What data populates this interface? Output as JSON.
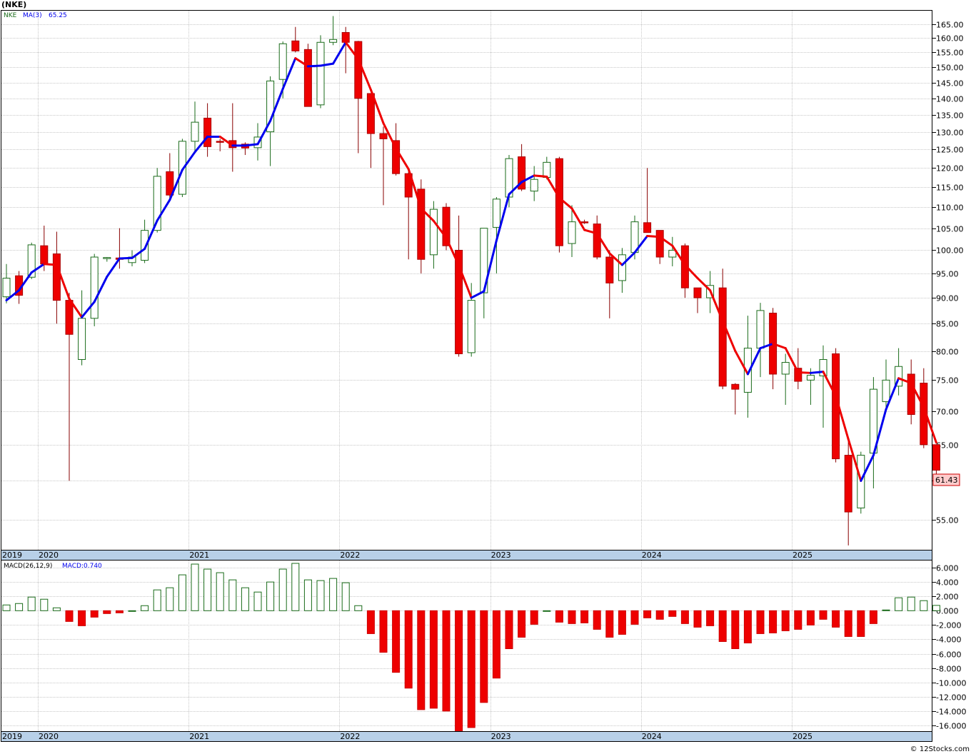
{
  "title": "(NKE)",
  "footer": "© 12Stocks.com",
  "colors": {
    "up_candle": "#1a6b1a",
    "down_candle": "#ee0000",
    "ma_up": "#0000ee",
    "ma_down": "#ee0000",
    "grid": "#c8c8c8",
    "axis_band": "#b8d0e8",
    "last_label_bg": "#ffcccc"
  },
  "chart_data": [
    {
      "type": "candlestick",
      "interval": "monthly",
      "legend": {
        "symbol": "NKE",
        "ma_label": "MA(3)",
        "ma_value": "65.25"
      },
      "last_price_label": "61.43",
      "y_scale": "log",
      "ylim": [
        51.5,
        170
      ],
      "yticks": [
        55,
        60,
        65,
        70,
        75,
        80,
        85,
        90,
        95,
        100,
        105,
        110,
        115,
        120,
        125,
        130,
        135,
        140,
        145,
        150,
        155,
        160,
        165
      ],
      "ytick_labels": [
        "55.00",
        "60.00",
        "65.00",
        "70.00",
        "75.00",
        "80.00",
        "85.00",
        "90.00",
        "95.00",
        "100.00",
        "105.00",
        "110.00",
        "115.00",
        "120.00",
        "125.00",
        "130.00",
        "135.00",
        "140.00",
        "145.00",
        "150.00",
        "155.00",
        "160.00",
        "165.00"
      ],
      "xaxis_years": [
        {
          "label": "2019",
          "index": -0.5
        },
        {
          "label": "2020",
          "index": 3
        },
        {
          "label": "2021",
          "index": 15
        },
        {
          "label": "2022",
          "index": 27
        },
        {
          "label": "2023",
          "index": 39
        },
        {
          "label": "2024",
          "index": 51
        },
        {
          "label": "2025",
          "index": 63
        }
      ],
      "series": [
        {
          "name": "NKE",
          "ohlc": [
            [
              90.2,
              97.0,
              88.9,
              94.0
            ],
            [
              94.5,
              95.5,
              88.8,
              90.5
            ],
            [
              94.2,
              101.7,
              93.8,
              101.2
            ],
            [
              101.0,
              105.6,
              95.5,
              97.0
            ],
            [
              99.2,
              104.2,
              85.0,
              89.5
            ],
            [
              89.5,
              91.0,
              60.0,
              83.0
            ],
            [
              78.5,
              91.5,
              77.5,
              86.0
            ],
            [
              86.0,
              99.2,
              84.5,
              98.5
            ],
            [
              98.2,
              98.5,
              97.5,
              98.4
            ],
            [
              98.3,
              105.0,
              96.0,
              98.0
            ],
            [
              97.3,
              100.0,
              96.5,
              98.5
            ],
            [
              97.8,
              107.0,
              97.2,
              104.5
            ],
            [
              104.5,
              120.0,
              104.0,
              117.8
            ],
            [
              119.0,
              124.0,
              112.0,
              113.0
            ],
            [
              113.2,
              128.0,
              112.5,
              127.3
            ],
            [
              127.3,
              139.0,
              124.5,
              132.8
            ],
            [
              134.0,
              138.5,
              123.0,
              125.8
            ],
            [
              127.3,
              128.0,
              124.5,
              127.0
            ],
            [
              127.5,
              138.5,
              119.0,
              125.5
            ],
            [
              126.5,
              127.0,
              123.5,
              125.4
            ],
            [
              125.5,
              132.5,
              122.0,
              128.5
            ],
            [
              130.0,
              147.0,
              120.5,
              145.5
            ],
            [
              146.0,
              158.8,
              140.0,
              158.0
            ],
            [
              159.0,
              164.0,
              155.0,
              155.5
            ],
            [
              156.0,
              158.0,
              137.5,
              137.5
            ],
            [
              138.0,
              161.0,
              137.0,
              158.5
            ],
            [
              158.5,
              168.0,
              157.5,
              159.5
            ],
            [
              162.0,
              164.0,
              148.0,
              158.5
            ],
            [
              158.8,
              159.0,
              124.0,
              140.0
            ],
            [
              141.5,
              141.5,
              120.0,
              129.5
            ],
            [
              129.5,
              131.5,
              110.5,
              128.0
            ],
            [
              127.5,
              132.5,
              118.0,
              118.5
            ],
            [
              118.5,
              119.5,
              98.0,
              112.5
            ],
            [
              114.5,
              117.0,
              95.0,
              98.0
            ],
            [
              99.0,
              111.5,
              96.0,
              109.5
            ],
            [
              110.0,
              111.0,
              100.0,
              101.0
            ],
            [
              100.0,
              108.0,
              79.0,
              79.5
            ],
            [
              79.7,
              93.0,
              79.0,
              89.5
            ],
            [
              91.0,
              105.0,
              86.0,
              105.0
            ],
            [
              105.2,
              112.5,
              95.0,
              112.0
            ],
            [
              112.5,
              123.5,
              110.0,
              122.5
            ],
            [
              123.0,
              126.5,
              114.0,
              114.5
            ],
            [
              114.0,
              120.5,
              111.5,
              117.0
            ],
            [
              117.5,
              123.0,
              117.0,
              121.5
            ],
            [
              122.5,
              123.0,
              99.5,
              101.0
            ],
            [
              101.5,
              110.5,
              98.5,
              106.5
            ],
            [
              106.5,
              107.0,
              106.0,
              106.3
            ],
            [
              106.0,
              108.0,
              98.0,
              98.5
            ],
            [
              98.5,
              100.0,
              86.0,
              93.0
            ],
            [
              93.5,
              100.5,
              91.0,
              99.0
            ],
            [
              99.5,
              108.0,
              98.0,
              106.5
            ],
            [
              106.3,
              120.0,
              104.0,
              104.0
            ],
            [
              104.5,
              104.5,
              97.0,
              98.5
            ],
            [
              98.5,
              103.0,
              96.5,
              100.0
            ],
            [
              101.0,
              101.5,
              90.0,
              92.0
            ],
            [
              92.0,
              92.0,
              87.0,
              90.0
            ],
            [
              90.0,
              95.5,
              87.0,
              92.5
            ],
            [
              92.0,
              96.0,
              73.5,
              74.0
            ],
            [
              74.3,
              74.5,
              69.5,
              73.5
            ],
            [
              73.0,
              86.5,
              69.0,
              80.5
            ],
            [
              80.5,
              89.0,
              75.5,
              87.5
            ],
            [
              87.0,
              88.0,
              73.5,
              76.0
            ],
            [
              76.0,
              79.5,
              71.0,
              78.0
            ],
            [
              77.0,
              80.5,
              73.5,
              74.8
            ],
            [
              75.0,
              77.0,
              71.0,
              75.8
            ],
            [
              75.7,
              81.0,
              67.5,
              78.5
            ],
            [
              79.5,
              80.5,
              62.5,
              63.0
            ],
            [
              63.5,
              66.0,
              52.0,
              56.0
            ],
            [
              56.5,
              64.0,
              55.8,
              63.5
            ],
            [
              63.8,
              75.5,
              59.0,
              73.5
            ],
            [
              71.5,
              78.5,
              70.0,
              75.0
            ],
            [
              74.0,
              80.5,
              72.5,
              77.3
            ],
            [
              76.0,
              78.5,
              68.0,
              69.5
            ],
            [
              74.5,
              77.0,
              64.5,
              65.0
            ],
            [
              65.0,
              65.0,
              60.5,
              61.43
            ]
          ]
        },
        {
          "name": "MA(3)",
          "values": [
            89.5,
            91.5,
            95.2,
            97.0,
            96.8,
            89.8,
            86.2,
            89.2,
            94.3,
            98.2,
            98.3,
            100.3,
            106.8,
            111.8,
            119.5,
            124.3,
            128.6,
            128.6,
            126.1,
            126.1,
            126.5,
            133.2,
            143.0,
            153.0,
            150.3,
            150.5,
            151.2,
            158.5,
            152.7,
            142.7,
            132.5,
            125.3,
            119.7,
            109.7,
            106.7,
            102.8,
            96.7,
            90.0,
            91.3,
            102.2,
            113.2,
            116.3,
            118.0,
            117.7,
            112.3,
            109.7,
            104.6,
            103.8,
            99.3,
            96.8,
            99.5,
            103.2,
            103.0,
            101.0,
            96.8,
            94.0,
            91.5,
            85.5,
            80.0,
            76.0,
            80.5,
            81.3,
            80.5,
            76.3,
            76.2,
            76.4,
            72.4,
            65.8,
            60.0,
            63.5,
            70.3,
            75.3,
            74.5,
            70.6,
            65.3
          ]
        }
      ]
    },
    {
      "type": "bar",
      "legend": {
        "label": "MACD(26,12,9)",
        "value_label": "MACD:0.740"
      },
      "ylim": [
        -16.8,
        7.0
      ],
      "yticks": [
        6,
        4,
        2,
        0,
        -2,
        -4,
        -6,
        -8,
        -10,
        -12,
        -14,
        -16
      ],
      "ytick_labels": [
        "6.000",
        "4.000",
        "2.000",
        "0.000",
        "-2.000",
        "-4.000",
        "-6.000",
        "-8.000",
        "-10.000",
        "-12.000",
        "-14.000",
        "-16.000"
      ],
      "series": [
        {
          "name": "MACD",
          "values": [
            0.8,
            1.0,
            1.9,
            1.6,
            0.4,
            -1.5,
            -2.1,
            -0.9,
            -0.4,
            -0.3,
            0.0,
            0.7,
            2.9,
            3.2,
            5.0,
            6.5,
            5.8,
            5.3,
            4.3,
            3.2,
            2.6,
            4.0,
            5.8,
            6.6,
            4.3,
            4.2,
            4.5,
            3.9,
            0.7,
            -3.2,
            -5.8,
            -8.6,
            -10.8,
            -13.8,
            -13.6,
            -14.0,
            -16.8,
            -16.3,
            -12.8,
            -9.4,
            -5.3,
            -3.7,
            -1.9,
            0.0,
            -1.6,
            -1.8,
            -1.7,
            -2.6,
            -3.7,
            -3.3,
            -1.9,
            -1.0,
            -1.2,
            -0.8,
            -1.8,
            -2.3,
            -2.1,
            -4.3,
            -5.3,
            -4.5,
            -3.2,
            -3.1,
            -2.8,
            -2.6,
            -2.0,
            -1.2,
            -2.3,
            -3.6,
            -3.6,
            -1.8,
            0.1,
            1.8,
            1.9,
            1.4,
            0.74
          ]
        }
      ]
    }
  ]
}
